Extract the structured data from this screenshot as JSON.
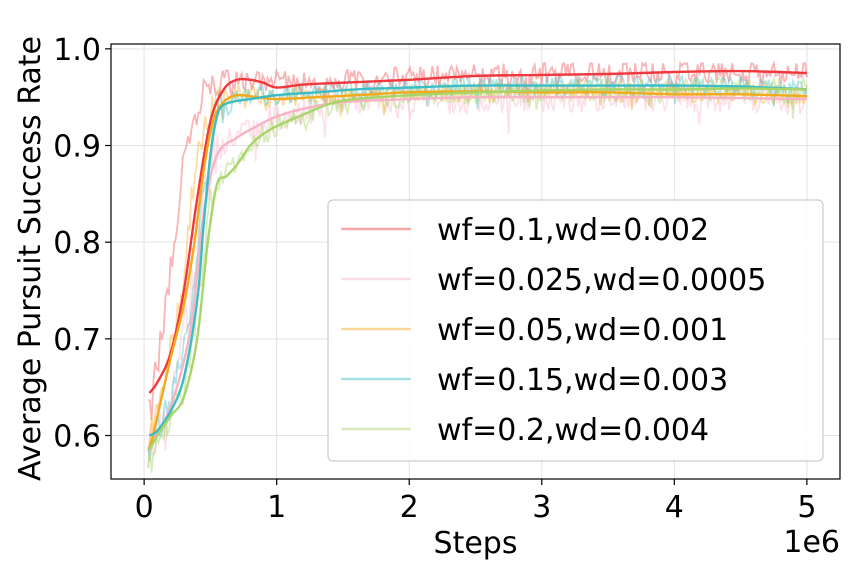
{
  "chart_data": {
    "type": "line",
    "title": "",
    "xlabel": "Steps",
    "ylabel": "Average Pursuit Success Rate",
    "x_scale_label": "1e6",
    "xlim": [
      -0.25,
      5.25
    ],
    "ylim": [
      0.555,
      1.005
    ],
    "grid": true,
    "legend_position": "center-right",
    "x_ticks": [
      0,
      1,
      2,
      3,
      4,
      5
    ],
    "x_tick_labels": [
      "0",
      "1",
      "2",
      "3",
      "4",
      "5"
    ],
    "y_ticks": [
      0.6,
      0.7,
      0.8,
      0.9,
      1.0
    ],
    "y_tick_labels": [
      "0.6",
      "0.7",
      "0.8",
      "0.9",
      "1.0"
    ],
    "series": [
      {
        "name": "wf=0.1,wd=0.002",
        "color": "#f0393f",
        "raw_alpha": 0.38,
        "noise": 0.012,
        "seed": 11,
        "smooth": [
          [
            0.04,
            0.644
          ],
          [
            0.1,
            0.655
          ],
          [
            0.2,
            0.685
          ],
          [
            0.3,
            0.75
          ],
          [
            0.4,
            0.845
          ],
          [
            0.5,
            0.925
          ],
          [
            0.6,
            0.958
          ],
          [
            0.7,
            0.968
          ],
          [
            0.8,
            0.968
          ],
          [
            0.9,
            0.965
          ],
          [
            1.0,
            0.96
          ],
          [
            1.2,
            0.963
          ],
          [
            1.5,
            0.965
          ],
          [
            2.0,
            0.968
          ],
          [
            2.5,
            0.972
          ],
          [
            3.0,
            0.973
          ],
          [
            3.5,
            0.974
          ],
          [
            4.0,
            0.976
          ],
          [
            4.5,
            0.977
          ],
          [
            5.0,
            0.975
          ]
        ],
        "raw": [
          [
            0.03,
            0.63
          ],
          [
            0.08,
            0.66
          ],
          [
            0.15,
            0.72
          ],
          [
            0.22,
            0.8
          ],
          [
            0.3,
            0.88
          ],
          [
            0.38,
            0.93
          ],
          [
            0.45,
            0.955
          ],
          [
            0.55,
            0.966
          ],
          [
            0.65,
            0.968
          ],
          [
            0.8,
            0.968
          ],
          [
            1.0,
            0.965
          ],
          [
            1.5,
            0.967
          ],
          [
            2.0,
            0.97
          ],
          [
            3.0,
            0.974
          ],
          [
            4.0,
            0.977
          ],
          [
            5.0,
            0.976
          ]
        ]
      },
      {
        "name": "wf=0.025,wd=0.0005",
        "color": "#f7b3c5",
        "raw_alpha": 0.4,
        "noise": 0.016,
        "seed": 23,
        "smooth": [
          [
            0.04,
            0.59
          ],
          [
            0.2,
            0.63
          ],
          [
            0.35,
            0.71
          ],
          [
            0.45,
            0.83
          ],
          [
            0.55,
            0.89
          ],
          [
            0.7,
            0.908
          ],
          [
            0.85,
            0.92
          ],
          [
            1.0,
            0.93
          ],
          [
            1.2,
            0.938
          ],
          [
            1.5,
            0.945
          ],
          [
            2.0,
            0.948
          ],
          [
            2.5,
            0.95
          ],
          [
            3.0,
            0.95
          ],
          [
            3.5,
            0.95
          ],
          [
            4.0,
            0.95
          ],
          [
            4.5,
            0.949
          ],
          [
            5.0,
            0.948
          ]
        ],
        "raw": [
          [
            0.03,
            0.59
          ],
          [
            0.2,
            0.64
          ],
          [
            0.35,
            0.74
          ],
          [
            0.45,
            0.85
          ],
          [
            0.55,
            0.895
          ],
          [
            0.7,
            0.91
          ],
          [
            0.85,
            0.92
          ],
          [
            1.0,
            0.93
          ],
          [
            1.5,
            0.945
          ],
          [
            2.0,
            0.948
          ],
          [
            3.0,
            0.95
          ],
          [
            4.0,
            0.95
          ],
          [
            5.0,
            0.948
          ]
        ]
      },
      {
        "name": "wf=0.05,wd=0.001",
        "color": "#f2a91c",
        "raw_alpha": 0.4,
        "noise": 0.01,
        "seed": 37,
        "smooth": [
          [
            0.04,
            0.585
          ],
          [
            0.1,
            0.62
          ],
          [
            0.2,
            0.68
          ],
          [
            0.3,
            0.735
          ],
          [
            0.38,
            0.8
          ],
          [
            0.45,
            0.875
          ],
          [
            0.52,
            0.925
          ],
          [
            0.6,
            0.945
          ],
          [
            0.7,
            0.952
          ],
          [
            0.85,
            0.95
          ],
          [
            1.0,
            0.948
          ],
          [
            1.3,
            0.95
          ],
          [
            1.6,
            0.952
          ],
          [
            2.0,
            0.955
          ],
          [
            2.5,
            0.956
          ],
          [
            3.0,
            0.955
          ],
          [
            3.5,
            0.955
          ],
          [
            4.0,
            0.953
          ],
          [
            4.5,
            0.953
          ],
          [
            5.0,
            0.951
          ]
        ],
        "raw": [
          [
            0.03,
            0.59
          ],
          [
            0.15,
            0.66
          ],
          [
            0.28,
            0.74
          ],
          [
            0.36,
            0.85
          ],
          [
            0.45,
            0.92
          ],
          [
            0.55,
            0.95
          ],
          [
            0.7,
            0.955
          ],
          [
            1.0,
            0.95
          ],
          [
            1.5,
            0.952
          ],
          [
            2.0,
            0.955
          ],
          [
            3.0,
            0.956
          ],
          [
            4.0,
            0.954
          ],
          [
            5.0,
            0.952
          ]
        ]
      },
      {
        "name": "wf=0.15,wd=0.003",
        "color": "#3cbdc4",
        "raw_alpha": 0.4,
        "noise": 0.011,
        "seed": 51,
        "smooth": [
          [
            0.04,
            0.6
          ],
          [
            0.1,
            0.605
          ],
          [
            0.2,
            0.625
          ],
          [
            0.3,
            0.66
          ],
          [
            0.4,
            0.74
          ],
          [
            0.45,
            0.82
          ],
          [
            0.5,
            0.89
          ],
          [
            0.55,
            0.93
          ],
          [
            0.6,
            0.942
          ],
          [
            0.7,
            0.946
          ],
          [
            0.8,
            0.948
          ],
          [
            1.0,
            0.952
          ],
          [
            1.3,
            0.955
          ],
          [
            1.6,
            0.958
          ],
          [
            2.0,
            0.96
          ],
          [
            2.5,
            0.962
          ],
          [
            3.0,
            0.962
          ],
          [
            3.5,
            0.962
          ],
          [
            4.0,
            0.962
          ],
          [
            4.5,
            0.961
          ],
          [
            5.0,
            0.958
          ]
        ],
        "raw": [
          [
            0.03,
            0.6
          ],
          [
            0.2,
            0.63
          ],
          [
            0.35,
            0.72
          ],
          [
            0.45,
            0.86
          ],
          [
            0.55,
            0.935
          ],
          [
            0.7,
            0.948
          ],
          [
            1.0,
            0.953
          ],
          [
            1.5,
            0.958
          ],
          [
            2.0,
            0.96
          ],
          [
            3.0,
            0.962
          ],
          [
            4.0,
            0.962
          ],
          [
            5.0,
            0.958
          ]
        ]
      },
      {
        "name": "wf=0.2,wd=0.004",
        "color": "#a8d56a",
        "raw_alpha": 0.45,
        "noise": 0.012,
        "seed": 67,
        "smooth": [
          [
            0.04,
            0.585
          ],
          [
            0.1,
            0.6
          ],
          [
            0.2,
            0.62
          ],
          [
            0.3,
            0.64
          ],
          [
            0.4,
            0.7
          ],
          [
            0.48,
            0.8
          ],
          [
            0.55,
            0.86
          ],
          [
            0.62,
            0.868
          ],
          [
            0.7,
            0.88
          ],
          [
            0.8,
            0.9
          ],
          [
            0.9,
            0.912
          ],
          [
            1.0,
            0.92
          ],
          [
            1.2,
            0.932
          ],
          [
            1.4,
            0.943
          ],
          [
            1.6,
            0.948
          ],
          [
            2.0,
            0.952
          ],
          [
            2.5,
            0.955
          ],
          [
            3.0,
            0.957
          ],
          [
            3.5,
            0.958
          ],
          [
            4.0,
            0.958
          ],
          [
            4.5,
            0.959
          ],
          [
            5.0,
            0.958
          ]
        ],
        "raw": [
          [
            0.03,
            0.58
          ],
          [
            0.2,
            0.62
          ],
          [
            0.3,
            0.65
          ],
          [
            0.42,
            0.75
          ],
          [
            0.5,
            0.84
          ],
          [
            0.6,
            0.87
          ],
          [
            0.8,
            0.9
          ],
          [
            1.0,
            0.92
          ],
          [
            1.5,
            0.945
          ],
          [
            2.0,
            0.952
          ],
          [
            3.0,
            0.957
          ],
          [
            4.0,
            0.958
          ],
          [
            5.0,
            0.958
          ]
        ]
      }
    ]
  }
}
